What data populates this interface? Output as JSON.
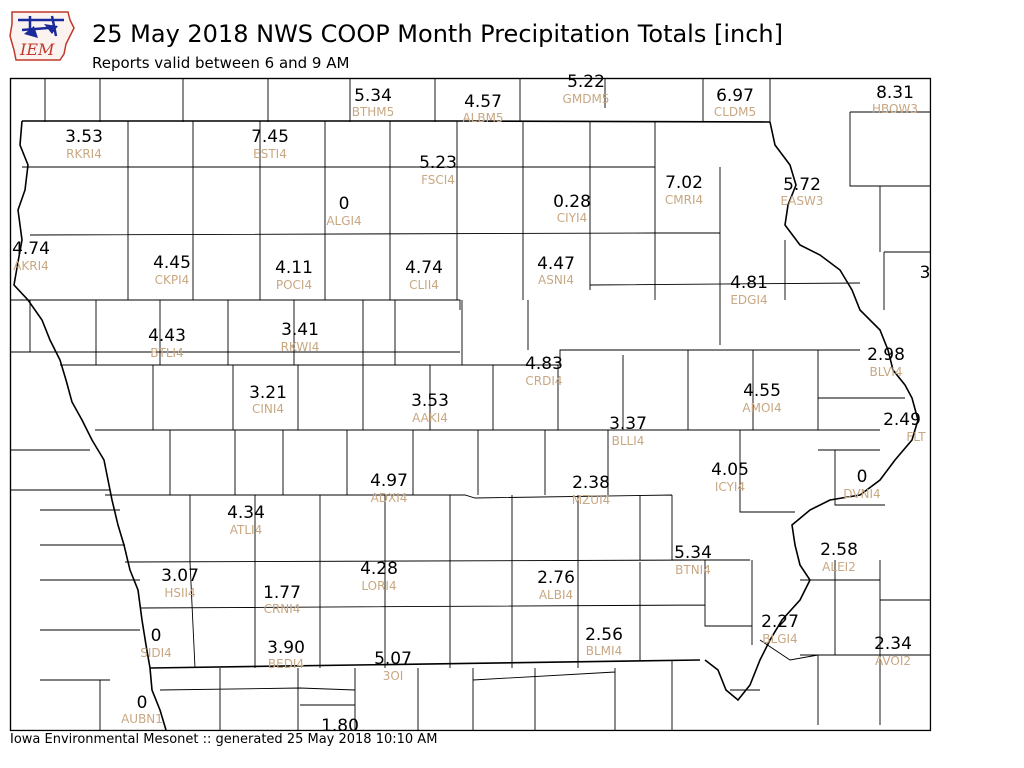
{
  "header": {
    "logo_text": "IEM",
    "title": "25 May 2018 NWS COOP Month Precipitation Totals [inch]",
    "subtitle": "Reports valid between 6 and 9 AM"
  },
  "footer": {
    "text": "Iowa Environmental Mesonet :: generated 25 May 2018 10:10 AM"
  },
  "colors": {
    "value": "#000000",
    "station": "#c8a882",
    "county_line": "#000000",
    "logo_blue": "#1a2a9a",
    "logo_red": "#c0392b"
  },
  "stations": [
    {
      "id": "BTHM5",
      "value": "5.34"
    },
    {
      "id": "ALBM5",
      "value": "4.57"
    },
    {
      "id": "GMDM5",
      "value": "5.22"
    },
    {
      "id": "CLDM5",
      "value": "6.97"
    },
    {
      "id": "HBOW3",
      "value": "8.31"
    },
    {
      "id": "RKRI4",
      "value": "3.53"
    },
    {
      "id": "ESTI4",
      "value": "7.45"
    },
    {
      "id": "FSCI4",
      "value": "5.23"
    },
    {
      "id": "ALGI4",
      "value": "0"
    },
    {
      "id": "CIYI4",
      "value": "0.28"
    },
    {
      "id": "CMRI4",
      "value": "7.02"
    },
    {
      "id": "EASW3",
      "value": "5.72"
    },
    {
      "id": "AKRI4",
      "value": "4.74"
    },
    {
      "id": "CKPI4",
      "value": "4.45"
    },
    {
      "id": "POCI4",
      "value": "4.11"
    },
    {
      "id": "CLII4",
      "value": "4.74"
    },
    {
      "id": "ASNI4",
      "value": "4.47"
    },
    {
      "id": "EDGI4",
      "value": "4.81"
    },
    {
      "id": "",
      "value": "3"
    },
    {
      "id": "BTLI4",
      "value": "4.43"
    },
    {
      "id": "RKWI4",
      "value": "3.41"
    },
    {
      "id": "CRDI4",
      "value": "4.83"
    },
    {
      "id": "BLVI4",
      "value": "2.98"
    },
    {
      "id": "CINI4",
      "value": "3.21"
    },
    {
      "id": "AAKI4",
      "value": "3.53"
    },
    {
      "id": "AMOI4",
      "value": "4.55"
    },
    {
      "id": "BLLI4",
      "value": "3.37"
    },
    {
      "id": "FLT",
      "value": "2.49"
    },
    {
      "id": "ADXI4",
      "value": "4.97"
    },
    {
      "id": "MZUI4",
      "value": "2.38"
    },
    {
      "id": "ICYI4",
      "value": "4.05"
    },
    {
      "id": "DVNI4",
      "value": "0"
    },
    {
      "id": "ATLI4",
      "value": "4.34"
    },
    {
      "id": "BTNI4",
      "value": "5.34"
    },
    {
      "id": "ALEI2",
      "value": "2.58"
    },
    {
      "id": "HSII4",
      "value": "3.07"
    },
    {
      "id": "CRNI4",
      "value": "1.77"
    },
    {
      "id": "LORI4",
      "value": "4.28"
    },
    {
      "id": "ALBI4",
      "value": "2.76"
    },
    {
      "id": "SIDI4",
      "value": "0"
    },
    {
      "id": "BLMI4",
      "value": "2.56"
    },
    {
      "id": "BLGI4",
      "value": "2.27"
    },
    {
      "id": "AVOI2",
      "value": "2.34"
    },
    {
      "id": "BEDI4",
      "value": "3.90"
    },
    {
      "id": "3OI",
      "value": "5.07"
    },
    {
      "id": "AUBN1",
      "value": "0"
    },
    {
      "id": "",
      "value": "1.80"
    }
  ]
}
